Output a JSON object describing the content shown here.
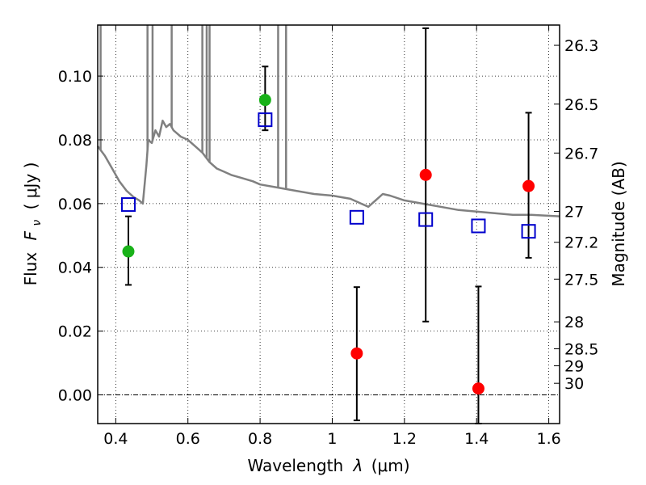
{
  "chart_data": {
    "type": "scatter",
    "xlabel": "Wavelength",
    "xlabel_symbol": "λ",
    "xlabel_unit": "(μm)",
    "ylabel": "Flux",
    "ylabel_symbol": "F",
    "ylabel_subscript": "ν",
    "ylabel_unit": "( μJy )",
    "y2label": "Magnitude (AB)",
    "xlim": [
      0.35,
      1.63
    ],
    "ylim": [
      -0.009,
      0.116
    ],
    "grid": true,
    "x_ticks": [
      {
        "value": 0.4,
        "label": "0.4"
      },
      {
        "value": 0.6,
        "label": "0.6"
      },
      {
        "value": 0.8,
        "label": "0.8"
      },
      {
        "value": 1.0,
        "label": "1"
      },
      {
        "value": 1.2,
        "label": "1.2"
      },
      {
        "value": 1.4,
        "label": "1.4"
      },
      {
        "value": 1.6,
        "label": "1.6"
      }
    ],
    "y_ticks": [
      {
        "value": 0.0,
        "label": "0.00"
      },
      {
        "value": 0.02,
        "label": "0.02"
      },
      {
        "value": 0.04,
        "label": "0.04"
      },
      {
        "value": 0.06,
        "label": "0.06"
      },
      {
        "value": 0.08,
        "label": "0.08"
      },
      {
        "value": 0.1,
        "label": "0.10"
      }
    ],
    "y2_ticks": [
      {
        "value": 26.3,
        "label": "26.3"
      },
      {
        "value": 26.5,
        "label": "26.5"
      },
      {
        "value": 26.7,
        "label": "26.7"
      },
      {
        "value": 27.0,
        "label": "27"
      },
      {
        "value": 27.2,
        "label": "27.2"
      },
      {
        "value": 27.5,
        "label": "27.5"
      },
      {
        "value": 28.0,
        "label": "28"
      },
      {
        "value": 28.5,
        "label": "28.5"
      },
      {
        "value": 29.0,
        "label": "29"
      },
      {
        "value": 30.0,
        "label": "30"
      }
    ],
    "model_spectrum": {
      "color": "#808080",
      "points": [
        [
          0.35,
          0.078
        ],
        [
          0.37,
          0.075
        ],
        [
          0.39,
          0.071
        ],
        [
          0.41,
          0.067
        ],
        [
          0.43,
          0.064
        ],
        [
          0.45,
          0.062
        ],
        [
          0.465,
          0.061
        ],
        [
          0.475,
          0.06
        ],
        [
          0.485,
          0.072
        ],
        [
          0.49,
          0.08
        ],
        [
          0.5,
          0.079
        ],
        [
          0.51,
          0.083
        ],
        [
          0.52,
          0.081
        ],
        [
          0.53,
          0.086
        ],
        [
          0.54,
          0.084
        ],
        [
          0.55,
          0.085
        ],
        [
          0.56,
          0.083
        ],
        [
          0.57,
          0.082
        ],
        [
          0.58,
          0.081
        ],
        [
          0.6,
          0.08
        ],
        [
          0.62,
          0.078
        ],
        [
          0.64,
          0.076
        ],
        [
          0.66,
          0.073
        ],
        [
          0.68,
          0.071
        ],
        [
          0.7,
          0.07
        ],
        [
          0.72,
          0.069
        ],
        [
          0.75,
          0.068
        ],
        [
          0.78,
          0.067
        ],
        [
          0.8,
          0.066
        ],
        [
          0.85,
          0.065
        ],
        [
          0.9,
          0.064
        ],
        [
          0.95,
          0.063
        ],
        [
          1.0,
          0.0625
        ],
        [
          1.05,
          0.0615
        ],
        [
          1.08,
          0.06
        ],
        [
          1.1,
          0.059
        ],
        [
          1.12,
          0.061
        ],
        [
          1.14,
          0.063
        ],
        [
          1.16,
          0.0625
        ],
        [
          1.2,
          0.061
        ],
        [
          1.25,
          0.06
        ],
        [
          1.3,
          0.059
        ],
        [
          1.35,
          0.058
        ],
        [
          1.4,
          0.0575
        ],
        [
          1.45,
          0.057
        ],
        [
          1.5,
          0.0565
        ],
        [
          1.55,
          0.0565
        ],
        [
          1.63,
          0.056
        ]
      ],
      "spikes": [
        [
          0.358,
          0.116
        ],
        [
          0.488,
          0.116
        ],
        [
          0.502,
          0.116
        ],
        [
          0.555,
          0.116
        ],
        [
          0.64,
          0.116
        ],
        [
          0.652,
          0.116
        ],
        [
          0.66,
          0.116
        ],
        [
          0.85,
          0.116
        ],
        [
          0.872,
          0.116
        ]
      ]
    },
    "series": [
      {
        "name": "",
        "marker": "circle",
        "color": "#19b219",
        "points": [
          {
            "x": 0.435,
            "y": 0.045,
            "yerr_low": 0.0345,
            "yerr_high": 0.056
          },
          {
            "x": 0.814,
            "y": 0.0925,
            "yerr_low": 0.083,
            "yerr_high": 0.103
          }
        ]
      },
      {
        "name": "",
        "marker": "circle",
        "color": "#ff0000",
        "points": [
          {
            "x": 1.068,
            "y": 0.013,
            "yerr_low": -0.008,
            "yerr_high": 0.0338
          },
          {
            "x": 1.259,
            "y": 0.069,
            "yerr_low": 0.023,
            "yerr_high": 0.115
          },
          {
            "x": 1.405,
            "y": 0.002,
            "yerr_low": -0.009,
            "yerr_high": 0.034
          },
          {
            "x": 1.544,
            "y": 0.0655,
            "yerr_low": 0.043,
            "yerr_high": 0.0885
          }
        ]
      },
      {
        "name": "",
        "marker": "square-open",
        "color": "#0000cc",
        "points": [
          {
            "x": 0.435,
            "y": 0.0597
          },
          {
            "x": 0.814,
            "y": 0.0863
          },
          {
            "x": 1.068,
            "y": 0.0557
          },
          {
            "x": 1.259,
            "y": 0.055
          },
          {
            "x": 1.405,
            "y": 0.053
          },
          {
            "x": 1.544,
            "y": 0.0513
          }
        ]
      }
    ]
  }
}
